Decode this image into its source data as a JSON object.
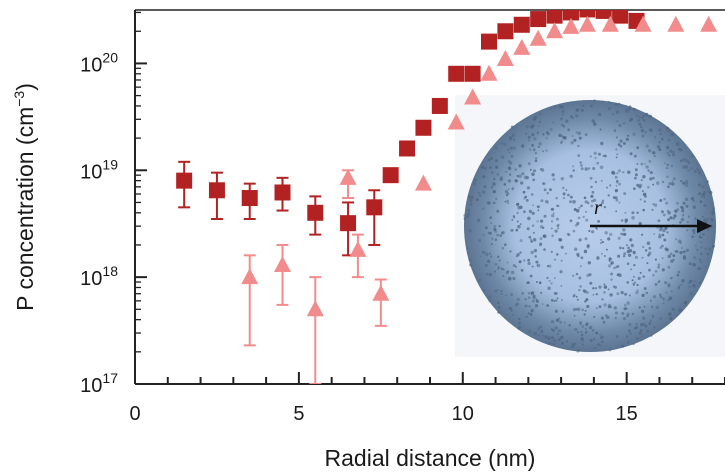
{
  "chart_data": {
    "type": "scatter",
    "title": "",
    "xlabel": "Radial distance (nm)",
    "ylabel_base": "P concentration (cm",
    "ylabel_exp": "−3",
    "ylabel_end": ")",
    "xlim": [
      0,
      18
    ],
    "ylim_log10": [
      17,
      20.5
    ],
    "y_scale": "log",
    "x_ticks": [
      {
        "value": 0,
        "label": "0"
      },
      {
        "value": 5,
        "label": "5"
      },
      {
        "value": 10,
        "label": "10"
      },
      {
        "value": 15,
        "label": "15"
      }
    ],
    "y_ticks": [
      {
        "exp": 17,
        "base": "10",
        "sup": "17"
      },
      {
        "exp": 18,
        "base": "10",
        "sup": "18"
      },
      {
        "exp": 19,
        "base": "10",
        "sup": "19"
      },
      {
        "exp": 20,
        "base": "10",
        "sup": "20"
      }
    ],
    "grid": false,
    "inset": {
      "label": "r",
      "description_color": "#9db9dc"
    },
    "series": [
      {
        "marker": "square",
        "color": "#b22222",
        "points": [
          {
            "x": 1.5,
            "y": 8e+18,
            "lo": 4.5e+18,
            "hi": 1.2e+19
          },
          {
            "x": 2.5,
            "y": 6.5e+18,
            "lo": 3.5e+18,
            "hi": 9.5e+18
          },
          {
            "x": 3.5,
            "y": 5.5e+18,
            "lo": 3.5e+18,
            "hi": 7.5e+18
          },
          {
            "x": 4.5,
            "y": 6.2e+18,
            "lo": 4.2e+18,
            "hi": 8.5e+18
          },
          {
            "x": 5.5,
            "y": 4e+18,
            "lo": 2.5e+18,
            "hi": 5.7e+18
          },
          {
            "x": 6.5,
            "y": 3.2e+18,
            "lo": 1.6e+18,
            "hi": 5e+18
          },
          {
            "x": 7.3,
            "y": 4.5e+18,
            "lo": 2e+18,
            "hi": 6.5e+18
          },
          {
            "x": 7.8,
            "y": 9e+18
          },
          {
            "x": 8.3,
            "y": 1.6e+19
          },
          {
            "x": 8.8,
            "y": 2.5e+19
          },
          {
            "x": 9.3,
            "y": 4e+19
          },
          {
            "x": 9.8,
            "y": 8e+19
          },
          {
            "x": 10.3,
            "y": 8e+19
          },
          {
            "x": 10.8,
            "y": 1.6e+20
          },
          {
            "x": 11.3,
            "y": 2e+20
          },
          {
            "x": 11.8,
            "y": 2.3e+20
          },
          {
            "x": 12.3,
            "y": 2.6e+20
          },
          {
            "x": 12.8,
            "y": 2.8e+20
          },
          {
            "x": 13.3,
            "y": 3e+20
          },
          {
            "x": 13.8,
            "y": 3.2e+20
          },
          {
            "x": 14.3,
            "y": 3.1e+20
          },
          {
            "x": 14.8,
            "y": 2.8e+20
          },
          {
            "x": 15.3,
            "y": 2.5e+20
          }
        ]
      },
      {
        "marker": "triangle",
        "color": "#f28c8c",
        "points": [
          {
            "x": 3.5,
            "y": 1e+18,
            "lo": 2.3e+17,
            "hi": 1.6e+18
          },
          {
            "x": 4.5,
            "y": 1.3e+18,
            "lo": 5.5e+17,
            "hi": 2e+18
          },
          {
            "x": 5.5,
            "y": 5e+17,
            "lo": 1e+17,
            "hi": 1e+18
          },
          {
            "x": 6.5,
            "y": 8.5e+18,
            "lo": 5.5e+18,
            "hi": 1e+19
          },
          {
            "x": 6.8,
            "y": 1.8e+18,
            "lo": 1e+18,
            "hi": 2.5e+18
          },
          {
            "x": 7.5,
            "y": 7e+17,
            "lo": 3.5e+17,
            "hi": 9.5e+17
          },
          {
            "x": 8.8,
            "y": 7.5e+18
          },
          {
            "x": 9.8,
            "y": 2.8e+19
          },
          {
            "x": 10.3,
            "y": 4.8e+19
          },
          {
            "x": 10.8,
            "y": 8e+19
          },
          {
            "x": 11.3,
            "y": 1.1e+20
          },
          {
            "x": 11.8,
            "y": 1.4e+20
          },
          {
            "x": 12.3,
            "y": 1.7e+20
          },
          {
            "x": 12.8,
            "y": 2e+20
          },
          {
            "x": 13.3,
            "y": 2.2e+20
          },
          {
            "x": 13.8,
            "y": 2.3e+20
          },
          {
            "x": 14.5,
            "y": 2.3e+20
          },
          {
            "x": 15.5,
            "y": 2.3e+20
          },
          {
            "x": 16.5,
            "y": 2.3e+20
          },
          {
            "x": 17.5,
            "y": 2.3e+20
          }
        ]
      }
    ]
  }
}
